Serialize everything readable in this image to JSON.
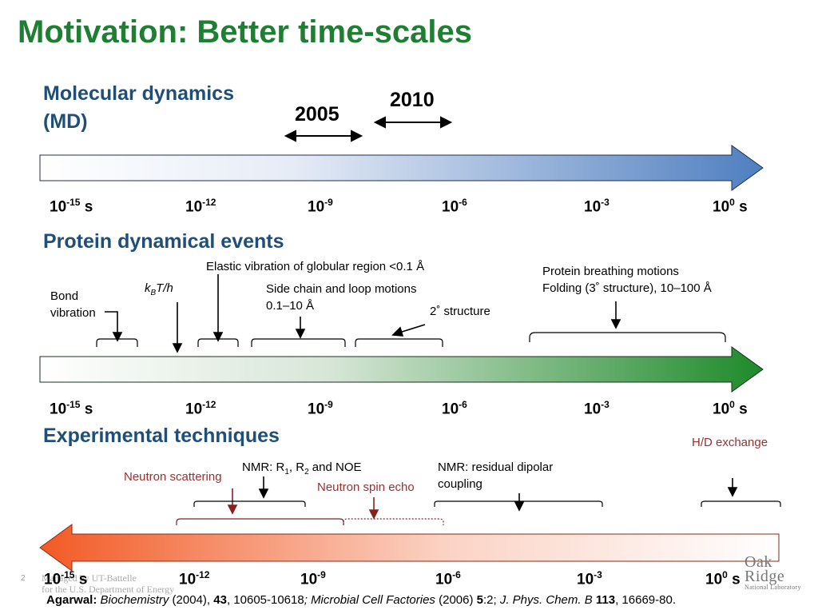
{
  "title": "Motivation: Better time-scales",
  "md": {
    "heading_line1": "Molecular dynamics",
    "heading_line2": "(MD)",
    "year1": "2005",
    "year2": "2010"
  },
  "protein": {
    "heading": "Protein dynamical events",
    "bond_line1": "Bond",
    "bond_line2": "vibration",
    "kbt": {
      "k": "k",
      "sub": "B",
      "rest": "T/h"
    },
    "elastic": "Elastic vibration of globular region <0.1 Å",
    "side_line1": "Side chain and loop motions",
    "side_line2": "0.1–10 Å",
    "secondary": "2˚   structure",
    "breathing_line1": "Protein breathing motions",
    "breathing_line2": "Folding (3˚   structure), 10–100 Å"
  },
  "experimental": {
    "heading": "Experimental techniques",
    "hd": "H/D exchange",
    "neutron_scattering": "Neutron scattering",
    "nmr_r": {
      "a": "NMR: R",
      "s1": "1",
      "b": ", R",
      "s2": "2",
      "c": " and NOE"
    },
    "nmr_rdc_line1": "NMR: residual dipolar",
    "nmr_rdc_line2": "coupling",
    "spin_echo": "Neutron spin echo"
  },
  "ticks": [
    {
      "base": "10",
      "exp": "-15",
      "unit": " s"
    },
    {
      "base": "10",
      "exp": "-12",
      "unit": ""
    },
    {
      "base": "10",
      "exp": "-9",
      "unit": ""
    },
    {
      "base": "10",
      "exp": "-6",
      "unit": ""
    },
    {
      "base": "10",
      "exp": "-3",
      "unit": ""
    },
    {
      "base": "10",
      "exp": "0",
      "unit": " s"
    }
  ],
  "footer": {
    "author": "Agarwal:",
    "j1": "Biochemistry",
    "j1_rest": " (2004), ",
    "v1": "43",
    "p1": ", 10605-10618",
    "sep1": "; ",
    "j2": "Microbial Cell Factories",
    "j2_rest": " (2006) ",
    "v2": "5",
    "p2": ":2; ",
    "j3": "J. Phys. Chem. B",
    "j3_rest": " ",
    "v3": "113",
    "p3": ", 16669-80."
  },
  "page_number": "2",
  "managed_line1": "Managed by UT-Battelle",
  "managed_line2": "for the U.S. Department of Energy",
  "logo": {
    "line1": "Oak",
    "line2": "Ridge",
    "line3": "National Laboratory"
  },
  "colors": {
    "title": "#1e7f33",
    "heading": "#1f4e79",
    "md_arrow_end": "#4f7fc0",
    "protein_arrow_end": "#1e8a2a",
    "exp_arrow_start": "#f25a24",
    "experimental_label": "#9b2f2f"
  }
}
